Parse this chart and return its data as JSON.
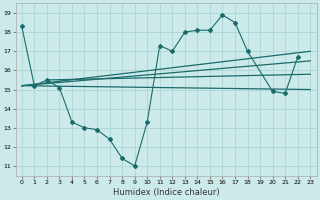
{
  "xlabel": "Humidex (Indice chaleur)",
  "background_color": "#cdeaea",
  "grid_color": "#b0d8d8",
  "line_color": "#1a6b6b",
  "xlim": [
    -0.5,
    23.5
  ],
  "ylim": [
    10.5,
    19.5
  ],
  "yticks": [
    11,
    12,
    13,
    14,
    15,
    16,
    17,
    18,
    19
  ],
  "xticks": [
    0,
    1,
    2,
    3,
    4,
    5,
    6,
    7,
    8,
    9,
    10,
    11,
    12,
    13,
    14,
    15,
    16,
    17,
    18,
    19,
    20,
    21,
    22,
    23
  ],
  "main_curve_x": [
    0,
    1,
    2,
    3,
    4,
    5,
    6,
    7,
    8,
    9,
    10,
    11,
    12,
    13,
    14,
    15,
    16,
    17,
    18,
    20,
    21,
    22
  ],
  "main_curve_y": [
    18.3,
    15.2,
    15.5,
    15.1,
    13.3,
    13.0,
    12.9,
    12.4,
    11.4,
    11.0,
    13.3,
    17.3,
    17.0,
    18.0,
    18.1,
    18.1,
    18.9,
    18.5,
    17.0,
    14.9,
    14.8,
    16.7
  ],
  "straight_lines": [
    {
      "x": [
        0,
        10,
        23
      ],
      "y": [
        15.2,
        15.1,
        15.0
      ]
    },
    {
      "x": [
        2,
        10,
        23
      ],
      "y": [
        15.5,
        15.3,
        16.0
      ]
    },
    {
      "x": [
        0,
        10,
        23
      ],
      "y": [
        15.2,
        15.5,
        16.5
      ]
    },
    {
      "x": [
        0,
        10,
        23
      ],
      "y": [
        15.2,
        15.8,
        17.0
      ]
    }
  ]
}
